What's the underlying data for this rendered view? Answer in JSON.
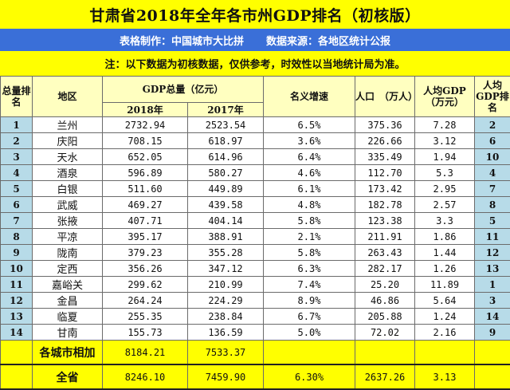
{
  "title": "甘肃省2018年全年各市州GDP排名（初核版）",
  "credits": {
    "maker": "表格制作：中国城市大比拼",
    "source": "数据来源：各地区统计公报"
  },
  "note": "注：以下数据为初核数据，仅供参考，时效性以当地统计局为准。",
  "headers": {
    "rank": "总量排名",
    "region": "地区",
    "gdp_group": "GDP总量（亿元）",
    "gdp_2018": "2018年",
    "gdp_2017": "2017年",
    "growth": "名义增速",
    "population": "人口　（万人）",
    "per_capita": "人均GDP（万元）",
    "per_capita_rank": "人均GDP排名"
  },
  "rows": [
    {
      "rank": "1",
      "region": "兰州",
      "gdp_2018": "2732.94",
      "gdp_2017": "2523.54",
      "growth": "6.5%",
      "population": "375.36",
      "per_capita": "7.28",
      "per_capita_rank": "2"
    },
    {
      "rank": "2",
      "region": "庆阳",
      "gdp_2018": "708.15",
      "gdp_2017": "618.97",
      "growth": "3.6%",
      "population": "226.66",
      "per_capita": "3.12",
      "per_capita_rank": "6"
    },
    {
      "rank": "3",
      "region": "天水",
      "gdp_2018": "652.05",
      "gdp_2017": "614.96",
      "growth": "6.4%",
      "population": "335.49",
      "per_capita": "1.94",
      "per_capita_rank": "10"
    },
    {
      "rank": "4",
      "region": "酒泉",
      "gdp_2018": "596.89",
      "gdp_2017": "580.27",
      "growth": "4.6%",
      "population": "112.70",
      "per_capita": "5.3",
      "per_capita_rank": "4"
    },
    {
      "rank": "5",
      "region": "白银",
      "gdp_2018": "511.60",
      "gdp_2017": "449.89",
      "growth": "6.1%",
      "population": "173.42",
      "per_capita": "2.95",
      "per_capita_rank": "7"
    },
    {
      "rank": "6",
      "region": "武威",
      "gdp_2018": "469.27",
      "gdp_2017": "439.58",
      "growth": "4.8%",
      "population": "182.78",
      "per_capita": "2.57",
      "per_capita_rank": "8"
    },
    {
      "rank": "7",
      "region": "张掖",
      "gdp_2018": "407.71",
      "gdp_2017": "404.14",
      "growth": "5.8%",
      "population": "123.38",
      "per_capita": "3.3",
      "per_capita_rank": "5"
    },
    {
      "rank": "8",
      "region": "平凉",
      "gdp_2018": "395.17",
      "gdp_2017": "388.91",
      "growth": "2.1%",
      "population": "211.91",
      "per_capita": "1.86",
      "per_capita_rank": "11"
    },
    {
      "rank": "9",
      "region": "陇南",
      "gdp_2018": "379.23",
      "gdp_2017": "355.28",
      "growth": "5.8%",
      "population": "263.43",
      "per_capita": "1.44",
      "per_capita_rank": "12"
    },
    {
      "rank": "10",
      "region": "定西",
      "gdp_2018": "356.26",
      "gdp_2017": "347.12",
      "growth": "6.3%",
      "population": "282.17",
      "per_capita": "1.26",
      "per_capita_rank": "13"
    },
    {
      "rank": "11",
      "region": "嘉峪关",
      "gdp_2018": "299.62",
      "gdp_2017": "210.99",
      "growth": "7.4%",
      "population": "25.20",
      "per_capita": "11.89",
      "per_capita_rank": "1"
    },
    {
      "rank": "12",
      "region": "金昌",
      "gdp_2018": "264.24",
      "gdp_2017": "224.29",
      "growth": "8.9%",
      "population": "46.86",
      "per_capita": "5.64",
      "per_capita_rank": "3"
    },
    {
      "rank": "13",
      "region": "临夏",
      "gdp_2018": "255.35",
      "gdp_2017": "238.84",
      "growth": "6.7%",
      "population": "205.88",
      "per_capita": "1.24",
      "per_capita_rank": "14"
    },
    {
      "rank": "14",
      "region": "甘南",
      "gdp_2018": "155.73",
      "gdp_2017": "136.59",
      "growth": "5.0%",
      "population": "72.02",
      "per_capita": "2.16",
      "per_capita_rank": "9"
    }
  ],
  "sum_row": {
    "label": "各城市相加",
    "gdp_2018": "8184.21",
    "gdp_2017": "7533.37",
    "growth": "",
    "population": "",
    "per_capita": "",
    "per_capita_rank": ""
  },
  "total_row": {
    "label": "全省",
    "gdp_2018": "8246.10",
    "gdp_2017": "7459.90",
    "growth": "6.30%",
    "population": "2637.26",
    "per_capita": "3.13",
    "per_capita_rank": ""
  },
  "colors": {
    "title_bg": "#ffff00",
    "credits_bg": "#3a6fd8",
    "header_bg": "#ffffc0",
    "rank_bg": "#b7dbe8",
    "summary_bg": "#ffff00"
  }
}
